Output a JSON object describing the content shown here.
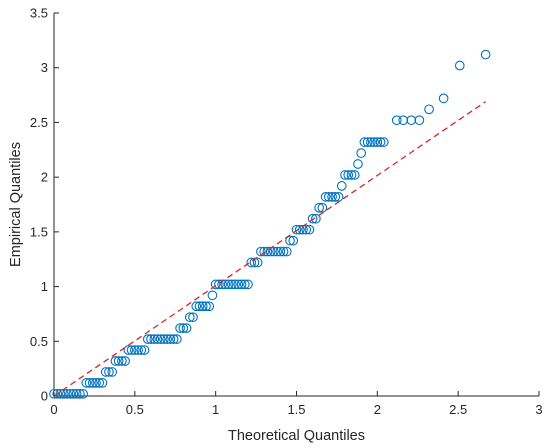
{
  "chart_data": {
    "type": "scatter",
    "title": "",
    "xlabel": "Theoretical Quantiles",
    "ylabel": "Empirical Quantiles",
    "xlim": [
      0,
      3
    ],
    "ylim": [
      0,
      3.5
    ],
    "xticks": [
      "0",
      "0.5",
      "1",
      "1.5",
      "2",
      "2.5",
      "3"
    ],
    "yticks": [
      "0",
      "0.5",
      "1",
      "1.5",
      "2",
      "2.5",
      "3",
      "3.5"
    ],
    "grid": false,
    "legend": "none",
    "marker_color": "#0072BD",
    "reference_line_color": "#D62728",
    "reference_line": {
      "x": [
        0.0,
        2.67
      ],
      "y": [
        0.0,
        2.69
      ]
    },
    "series": [
      {
        "x": [
          0.0,
          0.02,
          0.04,
          0.06,
          0.08,
          0.1,
          0.12,
          0.14,
          0.16,
          0.18,
          0.2,
          0.22,
          0.24,
          0.26,
          0.28,
          0.3,
          0.32,
          0.34,
          0.36,
          0.38,
          0.4,
          0.42,
          0.44,
          0.46,
          0.48,
          0.5,
          0.52,
          0.54,
          0.56,
          0.58,
          0.6,
          0.62,
          0.64,
          0.66,
          0.68,
          0.7,
          0.72,
          0.74,
          0.76,
          0.78,
          0.8,
          0.82,
          0.84,
          0.86,
          0.88,
          0.9,
          0.92,
          0.94,
          0.96,
          0.98,
          1.0,
          1.02,
          1.04,
          1.06,
          1.08,
          1.1,
          1.12,
          1.14,
          1.16,
          1.18,
          1.2,
          1.22,
          1.24,
          1.26,
          1.28,
          1.3,
          1.32,
          1.34,
          1.36,
          1.38,
          1.4,
          1.42,
          1.44,
          1.46,
          1.48,
          1.5,
          1.52,
          1.54,
          1.56,
          1.58,
          1.6,
          1.62,
          1.64,
          1.66,
          1.68,
          1.7,
          1.72,
          1.74,
          1.76,
          1.78,
          1.8,
          1.82,
          1.84,
          1.86,
          1.88,
          1.9,
          1.92,
          1.94,
          1.96,
          1.98,
          2.0,
          2.02,
          2.04,
          2.12,
          2.16,
          2.21,
          2.26,
          2.32,
          2.41,
          2.51,
          2.67
        ],
        "y": [
          0.02,
          0.02,
          0.02,
          0.02,
          0.02,
          0.02,
          0.02,
          0.02,
          0.02,
          0.02,
          0.12,
          0.12,
          0.12,
          0.12,
          0.12,
          0.12,
          0.22,
          0.22,
          0.22,
          0.32,
          0.32,
          0.32,
          0.32,
          0.42,
          0.42,
          0.42,
          0.42,
          0.42,
          0.42,
          0.52,
          0.52,
          0.52,
          0.52,
          0.52,
          0.52,
          0.52,
          0.52,
          0.52,
          0.52,
          0.62,
          0.62,
          0.62,
          0.72,
          0.72,
          0.82,
          0.82,
          0.82,
          0.82,
          0.82,
          0.92,
          1.02,
          1.02,
          1.02,
          1.02,
          1.02,
          1.02,
          1.02,
          1.02,
          1.02,
          1.02,
          1.02,
          1.22,
          1.22,
          1.22,
          1.32,
          1.32,
          1.32,
          1.32,
          1.32,
          1.32,
          1.32,
          1.32,
          1.32,
          1.42,
          1.42,
          1.52,
          1.52,
          1.52,
          1.52,
          1.52,
          1.62,
          1.62,
          1.72,
          1.72,
          1.82,
          1.82,
          1.82,
          1.82,
          1.82,
          1.92,
          2.02,
          2.02,
          2.02,
          2.02,
          2.12,
          2.22,
          2.32,
          2.32,
          2.32,
          2.32,
          2.32,
          2.32,
          2.32,
          2.52,
          2.52,
          2.52,
          2.52,
          2.62,
          2.72,
          3.02,
          3.12
        ]
      }
    ]
  }
}
